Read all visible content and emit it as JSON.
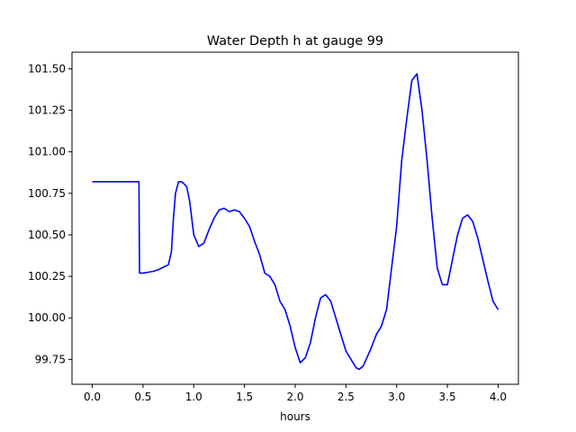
{
  "chart_data": {
    "type": "line",
    "title": "Water Depth h at gauge 99",
    "xlabel": "hours",
    "ylabel": "",
    "xlim": [
      -0.2,
      4.2
    ],
    "ylim": [
      99.6,
      101.6
    ],
    "xticks": [
      0.0,
      0.5,
      1.0,
      1.5,
      2.0,
      2.5,
      3.0,
      3.5,
      4.0
    ],
    "xtick_labels": [
      "0.0",
      "0.5",
      "1.0",
      "1.5",
      "2.0",
      "2.5",
      "3.0",
      "3.5",
      "4.0"
    ],
    "yticks": [
      99.75,
      100.0,
      100.25,
      100.5,
      100.75,
      101.0,
      101.25,
      101.5
    ],
    "ytick_labels": [
      "99.75",
      "100.00",
      "100.25",
      "100.50",
      "100.75",
      "101.00",
      "101.25",
      "101.50"
    ],
    "grid": false,
    "series": [
      {
        "color": "#0000ff",
        "x": [
          0.0,
          0.1,
          0.2,
          0.3,
          0.4,
          0.46,
          0.465,
          0.5,
          0.55,
          0.6,
          0.65,
          0.7,
          0.75,
          0.78,
          0.8,
          0.82,
          0.85,
          0.88,
          0.9,
          0.93,
          0.96,
          1.0,
          1.05,
          1.1,
          1.15,
          1.2,
          1.25,
          1.3,
          1.35,
          1.4,
          1.45,
          1.5,
          1.55,
          1.6,
          1.65,
          1.7,
          1.75,
          1.8,
          1.85,
          1.9,
          1.95,
          2.0,
          2.05,
          2.1,
          2.15,
          2.2,
          2.25,
          2.3,
          2.35,
          2.4,
          2.45,
          2.5,
          2.55,
          2.6,
          2.63,
          2.67,
          2.7,
          2.75,
          2.8,
          2.85,
          2.9,
          2.95,
          3.0,
          3.05,
          3.1,
          3.15,
          3.2,
          3.25,
          3.3,
          3.35,
          3.4,
          3.45,
          3.5,
          3.55,
          3.6,
          3.65,
          3.7,
          3.75,
          3.8,
          3.85,
          3.9,
          3.95,
          4.0
        ],
        "y": [
          100.82,
          100.82,
          100.82,
          100.82,
          100.82,
          100.82,
          100.27,
          100.27,
          100.275,
          100.28,
          100.29,
          100.305,
          100.32,
          100.4,
          100.6,
          100.75,
          100.82,
          100.82,
          100.81,
          100.79,
          100.7,
          100.5,
          100.43,
          100.45,
          100.53,
          100.6,
          100.65,
          100.66,
          100.64,
          100.65,
          100.64,
          100.6,
          100.55,
          100.46,
          100.38,
          100.27,
          100.25,
          100.2,
          100.1,
          100.05,
          99.95,
          99.82,
          99.73,
          99.76,
          99.85,
          100.0,
          100.12,
          100.14,
          100.1,
          100.0,
          99.9,
          99.8,
          99.75,
          99.7,
          99.69,
          99.71,
          99.75,
          99.82,
          99.9,
          99.95,
          100.05,
          100.3,
          100.55,
          100.95,
          101.2,
          101.43,
          101.47,
          101.25,
          100.95,
          100.6,
          100.3,
          100.2,
          100.2,
          100.35,
          100.5,
          100.6,
          100.62,
          100.58,
          100.48,
          100.35,
          100.22,
          100.1,
          100.05
        ]
      }
    ]
  }
}
